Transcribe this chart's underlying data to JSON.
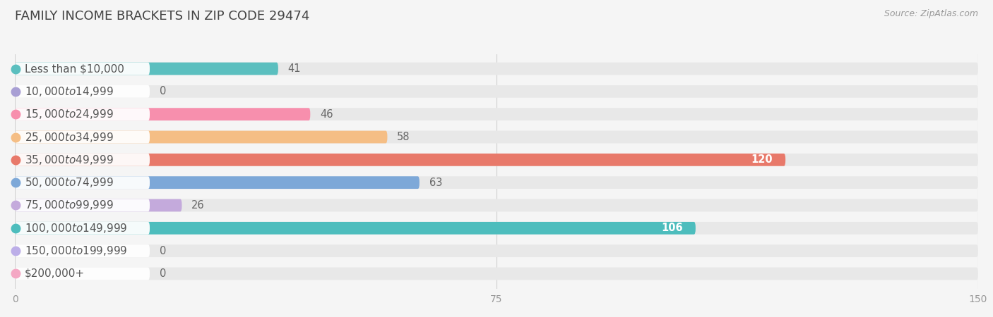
{
  "title": "FAMILY INCOME BRACKETS IN ZIP CODE 29474",
  "source": "Source: ZipAtlas.com",
  "categories": [
    "Less than $10,000",
    "$10,000 to $14,999",
    "$15,000 to $24,999",
    "$25,000 to $34,999",
    "$35,000 to $49,999",
    "$50,000 to $74,999",
    "$75,000 to $99,999",
    "$100,000 to $149,999",
    "$150,000 to $199,999",
    "$200,000+"
  ],
  "values": [
    41,
    0,
    46,
    58,
    120,
    63,
    26,
    106,
    0,
    0
  ],
  "bar_colors": [
    "#5BBFBF",
    "#A89FD4",
    "#F78FAD",
    "#F5BE85",
    "#E8796A",
    "#7DA8D8",
    "#C4AADC",
    "#4DBDBD",
    "#BCAEE8",
    "#F4A8C4"
  ],
  "xlim": [
    0,
    150
  ],
  "xticks": [
    0,
    75,
    150
  ],
  "background_color": "#f5f5f5",
  "bar_background_color": "#e8e8e8",
  "title_fontsize": 13,
  "label_fontsize": 11,
  "value_fontsize": 10.5,
  "bar_height": 0.55,
  "bar_spacing": 1.0
}
